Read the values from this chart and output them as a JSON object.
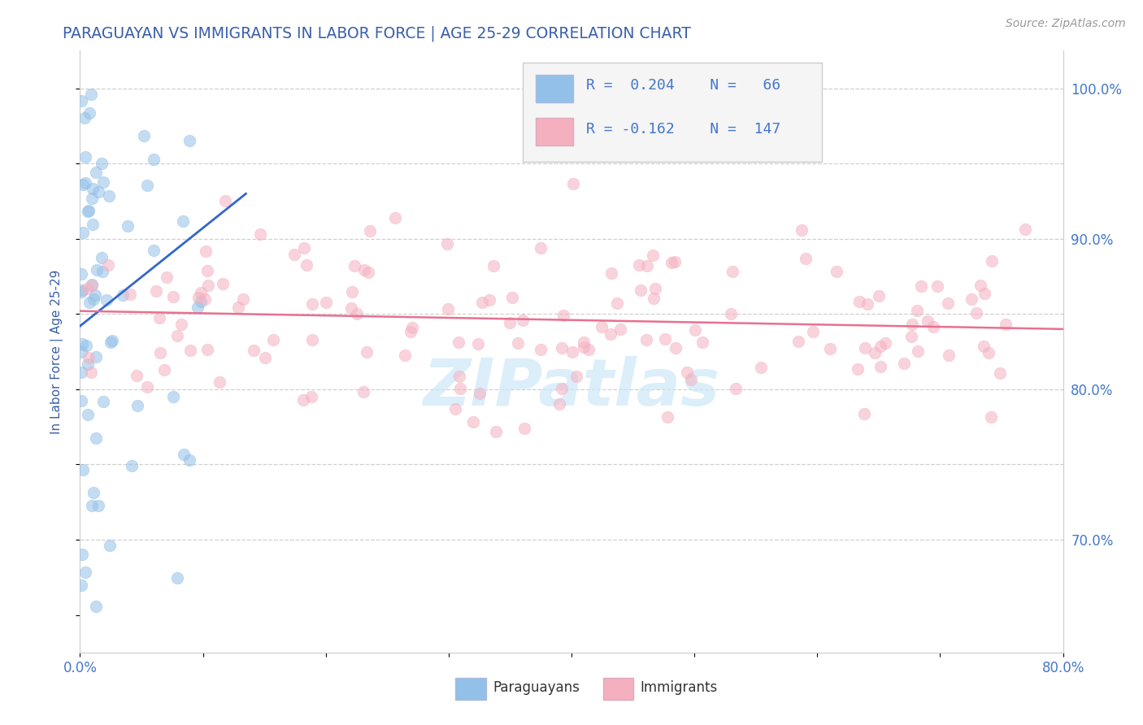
{
  "title": "PARAGUAYAN VS IMMIGRANTS IN LABOR FORCE | AGE 25-29 CORRELATION CHART",
  "source": "Source: ZipAtlas.com",
  "ylabel": "In Labor Force | Age 25-29",
  "xlabel_paraguayans": "Paraguayans",
  "xlabel_immigrants": "Immigrants",
  "x_min": 0.0,
  "x_max": 0.8,
  "y_min": 0.625,
  "y_max": 1.025,
  "blue_R": 0.204,
  "blue_N": 66,
  "pink_R": -0.162,
  "pink_N": 147,
  "blue_color": "#92c0e8",
  "pink_color": "#f5b0c0",
  "blue_line_color": "#3366cc",
  "pink_line_color": "#e87090",
  "title_color": "#3a5faa",
  "axis_label_color": "#3a5faa",
  "tick_label_color": "#4477cc",
  "grid_color": "#d0d0d0",
  "watermark_color": "#cce8f8"
}
